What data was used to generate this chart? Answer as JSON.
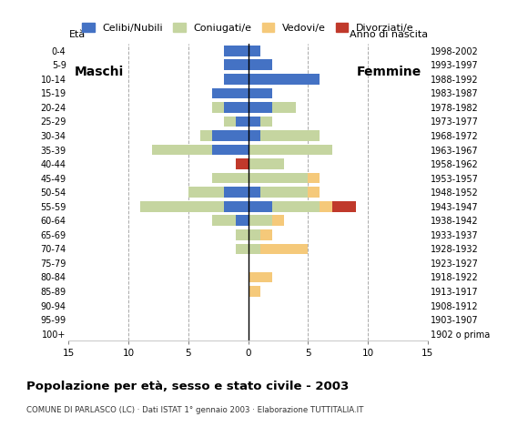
{
  "age_groups": [
    "100+",
    "95-99",
    "90-94",
    "85-89",
    "80-84",
    "75-79",
    "70-74",
    "65-69",
    "60-64",
    "55-59",
    "50-54",
    "45-49",
    "40-44",
    "35-39",
    "30-34",
    "25-29",
    "20-24",
    "15-19",
    "10-14",
    "5-9",
    "0-4"
  ],
  "birth_years": [
    "1902 o prima",
    "1903-1907",
    "1908-1912",
    "1913-1917",
    "1918-1922",
    "1923-1927",
    "1928-1932",
    "1933-1937",
    "1938-1942",
    "1943-1947",
    "1948-1952",
    "1953-1957",
    "1958-1962",
    "1963-1967",
    "1968-1972",
    "1973-1977",
    "1978-1982",
    "1983-1987",
    "1988-1992",
    "1993-1997",
    "1998-2002"
  ],
  "colors": {
    "celibe": "#4472c4",
    "coniugato": "#c5d5a0",
    "vedovo": "#f5c97a",
    "divorziato": "#c0392b"
  },
  "maschi": {
    "celibe": [
      0,
      0,
      0,
      0,
      0,
      0,
      0,
      0,
      1,
      2,
      2,
      0,
      0,
      3,
      3,
      1,
      2,
      3,
      2,
      2,
      2
    ],
    "coniugato": [
      0,
      0,
      0,
      0,
      0,
      0,
      1,
      1,
      2,
      7,
      3,
      3,
      0,
      5,
      1,
      1,
      1,
      0,
      0,
      0,
      0
    ],
    "vedovo": [
      0,
      0,
      0,
      0,
      0,
      0,
      0,
      0,
      0,
      0,
      0,
      0,
      0,
      0,
      0,
      0,
      0,
      0,
      0,
      0,
      0
    ],
    "divorziato": [
      0,
      0,
      0,
      0,
      0,
      0,
      0,
      0,
      0,
      0,
      0,
      0,
      1,
      0,
      0,
      0,
      0,
      0,
      0,
      0,
      0
    ]
  },
  "femmine": {
    "celibe": [
      0,
      0,
      0,
      0,
      0,
      0,
      0,
      0,
      0,
      2,
      1,
      0,
      0,
      0,
      1,
      1,
      2,
      2,
      6,
      2,
      1
    ],
    "coniugato": [
      0,
      0,
      0,
      0,
      0,
      0,
      1,
      1,
      2,
      4,
      4,
      5,
      3,
      7,
      5,
      1,
      2,
      0,
      0,
      0,
      0
    ],
    "vedovo": [
      0,
      0,
      0,
      1,
      2,
      0,
      4,
      1,
      1,
      1,
      1,
      1,
      0,
      0,
      0,
      0,
      0,
      0,
      0,
      0,
      0
    ],
    "divorziato": [
      0,
      0,
      0,
      0,
      0,
      0,
      0,
      0,
      0,
      2,
      0,
      0,
      0,
      0,
      0,
      0,
      0,
      0,
      0,
      0,
      0
    ]
  },
  "title": "Popolazione per età, sesso e stato civile - 2003",
  "subtitle": "COMUNE DI PARLASCO (LC) · Dati ISTAT 1° gennaio 2003 · Elaborazione TUTTITALIA.IT",
  "xlim": 15,
  "legend_labels": [
    "Celibi/Nubili",
    "Coniugati/e",
    "Vedovi/e",
    "Divorziati/e"
  ],
  "maschi_label": "Maschi",
  "femmine_label": "Femmine",
  "eta_label": "Età",
  "anno_label": "Anno di nascita"
}
